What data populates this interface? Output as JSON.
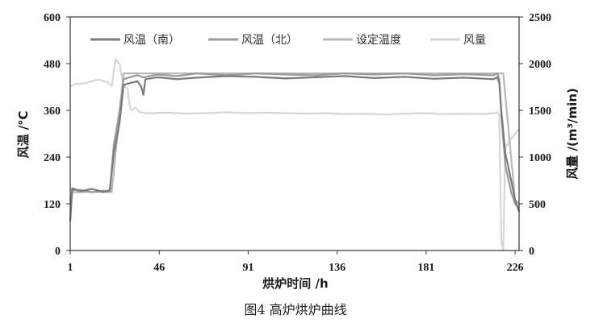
{
  "figure_caption": "图4    高炉烘炉曲线",
  "chart_data": {
    "type": "line",
    "xlabel": "烘炉时间    /h",
    "ylabel_left": "风温  /℃",
    "ylabel_right": "风量  /(m³/min)",
    "x_ticks": [
      "1",
      "46",
      "91",
      "136",
      "181",
      "226"
    ],
    "y_left_ticks": [
      "0",
      "120",
      "240",
      "360",
      "480",
      "600"
    ],
    "y_right_ticks": [
      "0",
      "500",
      "1000",
      "1500",
      "2000",
      "2500"
    ],
    "xlim": [
      1,
      228
    ],
    "ylim_left": [
      0,
      600
    ],
    "ylim_right": [
      0,
      2500
    ],
    "grid": false,
    "legend_position": "top",
    "series": [
      {
        "name": "风温（南）",
        "axis": "left",
        "color": "#7a7a7a",
        "points": [
          [
            1,
            75
          ],
          [
            2,
            160
          ],
          [
            6,
            152
          ],
          [
            12,
            158
          ],
          [
            18,
            150
          ],
          [
            21,
            155
          ],
          [
            23,
            250
          ],
          [
            25,
            300
          ],
          [
            26,
            330
          ],
          [
            28,
            425
          ],
          [
            31,
            430
          ],
          [
            35,
            435
          ],
          [
            37,
            420
          ],
          [
            38,
            400
          ],
          [
            39,
            440
          ],
          [
            45,
            445
          ],
          [
            55,
            440
          ],
          [
            65,
            444
          ],
          [
            80,
            448
          ],
          [
            95,
            446
          ],
          [
            110,
            442
          ],
          [
            125,
            445
          ],
          [
            140,
            448
          ],
          [
            155,
            443
          ],
          [
            170,
            446
          ],
          [
            185,
            441
          ],
          [
            200,
            444
          ],
          [
            215,
            440
          ],
          [
            217,
            445
          ],
          [
            218,
            430
          ],
          [
            219,
            360
          ],
          [
            221,
            250
          ],
          [
            224,
            180
          ],
          [
            226,
            130
          ],
          [
            228,
            100
          ]
        ]
      },
      {
        "name": "风温（北）",
        "axis": "left",
        "color": "#9a9a9a",
        "points": [
          [
            1,
            80
          ],
          [
            2,
            155
          ],
          [
            6,
            156
          ],
          [
            12,
            150
          ],
          [
            18,
            154
          ],
          [
            21,
            152
          ],
          [
            23,
            270
          ],
          [
            25,
            330
          ],
          [
            26,
            360
          ],
          [
            28,
            440
          ],
          [
            31,
            445
          ],
          [
            35,
            450
          ],
          [
            38,
            445
          ],
          [
            45,
            452
          ],
          [
            55,
            448
          ],
          [
            65,
            455
          ],
          [
            80,
            450
          ],
          [
            95,
            455
          ],
          [
            110,
            452
          ],
          [
            125,
            450
          ],
          [
            140,
            455
          ],
          [
            155,
            452
          ],
          [
            170,
            455
          ],
          [
            185,
            450
          ],
          [
            200,
            453
          ],
          [
            215,
            450
          ],
          [
            217,
            455
          ],
          [
            218,
            440
          ],
          [
            219,
            350
          ],
          [
            221,
            220
          ],
          [
            224,
            150
          ],
          [
            226,
            120
          ],
          [
            228,
            110
          ]
        ]
      },
      {
        "name": "设定温度",
        "axis": "left",
        "color": "#b8b8b8",
        "points": [
          [
            1,
            150
          ],
          [
            22,
            150
          ],
          [
            28,
            455
          ],
          [
            46,
            455
          ],
          [
            220,
            455
          ],
          [
            226,
            130
          ],
          [
            228,
            120
          ]
        ]
      },
      {
        "name": "风量",
        "axis": "right",
        "color": "#d6d6d6",
        "points": [
          [
            1,
            1750
          ],
          [
            3,
            1780
          ],
          [
            8,
            1790
          ],
          [
            15,
            1830
          ],
          [
            20,
            1800
          ],
          [
            22,
            1760
          ],
          [
            24,
            2050
          ],
          [
            26,
            1990
          ],
          [
            28,
            1760
          ],
          [
            30,
            1740
          ],
          [
            31,
            1550
          ],
          [
            32,
            1500
          ],
          [
            34,
            1530
          ],
          [
            36,
            1480
          ],
          [
            40,
            1470
          ],
          [
            50,
            1475
          ],
          [
            60,
            1465
          ],
          [
            70,
            1470
          ],
          [
            80,
            1480
          ],
          [
            90,
            1470
          ],
          [
            100,
            1475
          ],
          [
            110,
            1470
          ],
          [
            120,
            1465
          ],
          [
            130,
            1470
          ],
          [
            140,
            1460
          ],
          [
            150,
            1465
          ],
          [
            160,
            1455
          ],
          [
            170,
            1465
          ],
          [
            180,
            1470
          ],
          [
            190,
            1460
          ],
          [
            200,
            1465
          ],
          [
            210,
            1460
          ],
          [
            216,
            1470
          ],
          [
            217,
            1480
          ],
          [
            218,
            1450
          ],
          [
            219,
            100
          ],
          [
            220,
            0
          ],
          [
            221,
            1100
          ],
          [
            224,
            1200
          ],
          [
            228,
            1300
          ]
        ]
      }
    ]
  }
}
